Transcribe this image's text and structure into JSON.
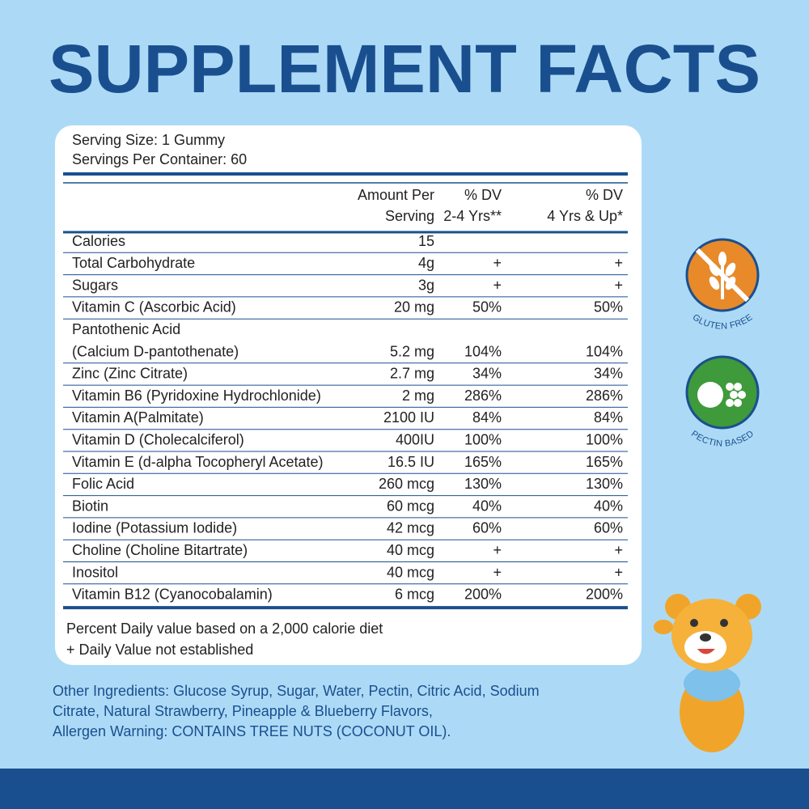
{
  "title": "SUPPLEMENT FACTS",
  "serving": [
    "Serving Size: 1 Gummy",
    "Servings Per Container: 60"
  ],
  "table": {
    "header": [
      [
        "Amount Per",
        "Serving"
      ],
      [
        "% DV",
        "2-4 Yrs**"
      ],
      [
        "% DV",
        "4 Yrs & Up*"
      ]
    ],
    "rows": [
      [
        "Calories",
        "15"
      ],
      [
        "Total Carbohydrate",
        "4g",
        "+",
        "+"
      ],
      [
        "Sugars",
        "3g",
        "+",
        "+"
      ],
      [
        "Vitamin C (Ascorbic Acid)",
        "20 mg",
        "50%",
        "50%"
      ],
      [
        [
          "Pantothenic Acid",
          "(Calcium D-pantothenate)"
        ],
        "5.2 mg",
        "104%",
        "104%"
      ],
      [
        "Zinc (Zinc Citrate)",
        "2.7 mg",
        "34%",
        "34%"
      ],
      [
        "Vitamin B6 (Pyridoxine Hydrochlonide)",
        "2 mg",
        "286%",
        "286%"
      ],
      [
        "Vitamin A(Palmitate)",
        "2100 IU",
        "84%",
        "84%"
      ],
      [
        "Vitamin D (Cholecalciferol)",
        "400IU",
        "100%",
        "100%"
      ],
      [
        "Vitamin E (d-alpha Tocopheryl Acetate)",
        "16.5 IU",
        "165%",
        "165%"
      ],
      [
        "Folic Acid",
        "260 mcg",
        "130%",
        "130%"
      ],
      [
        "Biotin",
        "60 mcg",
        "40%",
        "40%"
      ],
      [
        "Iodine (Potassium Iodide)",
        "42 mcg",
        "60%",
        "60%"
      ],
      [
        "Choline (Choline Bitartrate)",
        "40 mcg",
        "+",
        "+"
      ],
      [
        "Inositol",
        "40 mcg",
        "+",
        "+"
      ],
      [
        "Vitamin B12 (Cyanocobalamin)",
        "6 mcg",
        "200%",
        "200%"
      ]
    ]
  },
  "footnotes": [
    "Percent Daily value based on a 2,000 calorie diet",
    "+ Daily Value not established"
  ],
  "other_ingredients": [
    "Other Ingredients: Glucose Syrup, Sugar, Water, Pectin, Citric Acid, Sodium",
    "Citrate, Natural Strawberry, Pineapple & Blueberry Flavors,",
    "Allergen Warning: CONTAINS TREE NUTS (COCONUT OIL)."
  ],
  "badges": [
    "GLUTEN FREE",
    "PECTIN BASED"
  ]
}
